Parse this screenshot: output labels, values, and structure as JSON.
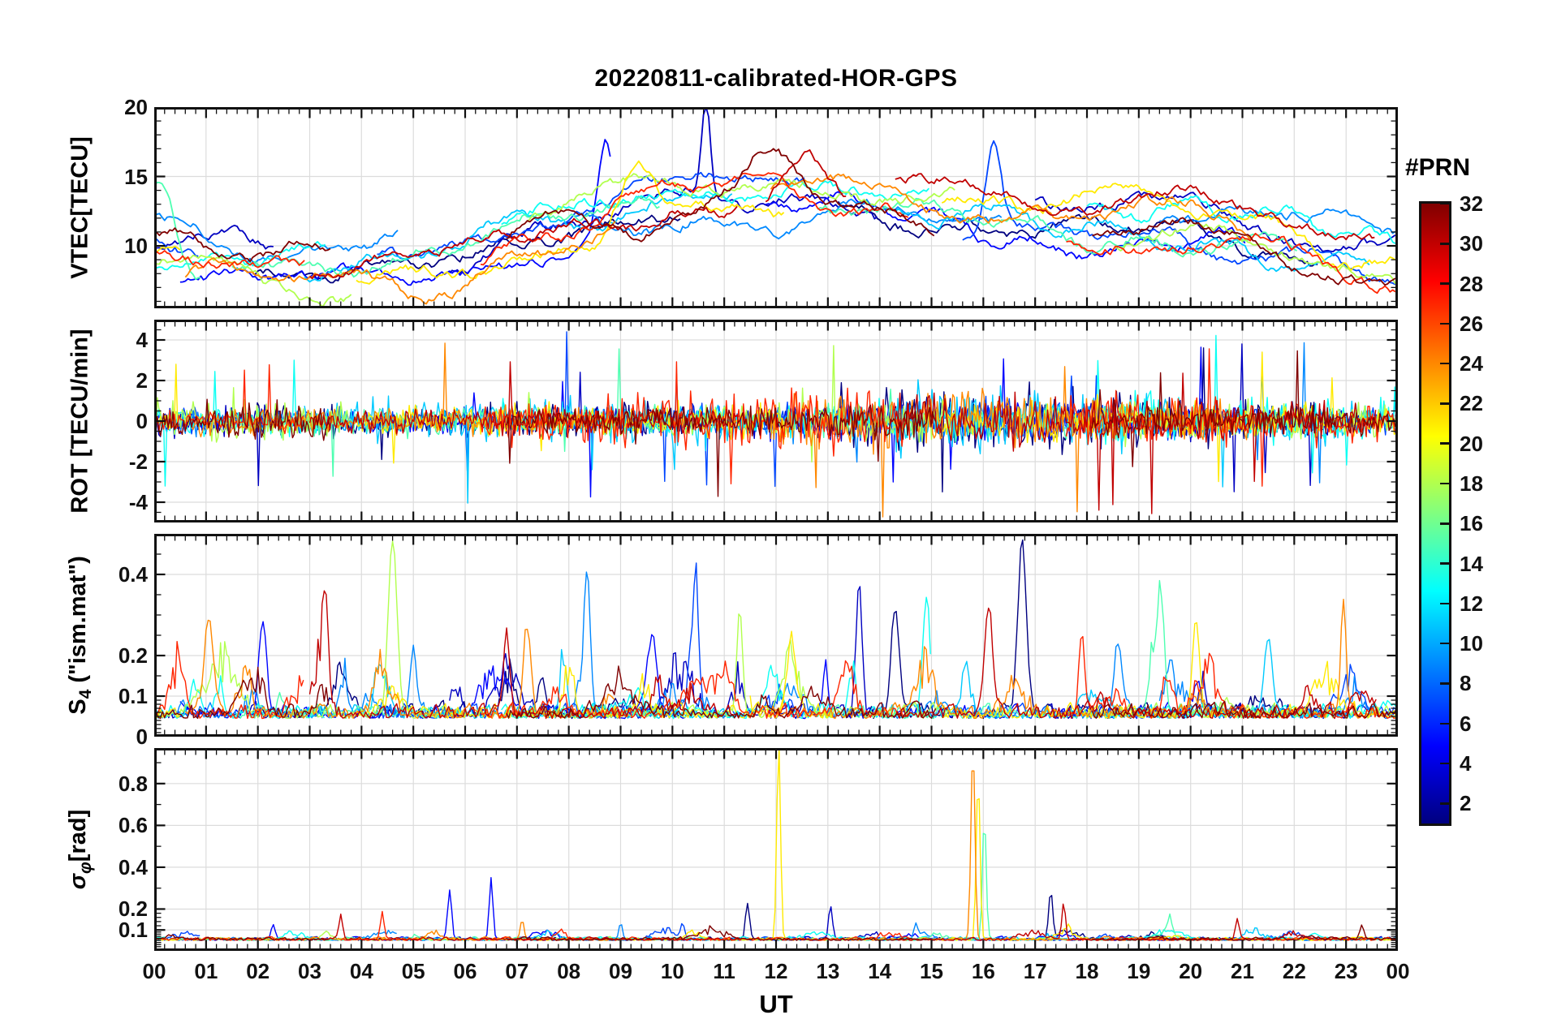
{
  "title": "20220811-calibrated-HOR-GPS",
  "xlabel": "UT",
  "x_ticks": [
    "00",
    "01",
    "02",
    "03",
    "04",
    "05",
    "06",
    "07",
    "08",
    "09",
    "10",
    "11",
    "12",
    "13",
    "14",
    "15",
    "16",
    "17",
    "18",
    "19",
    "20",
    "21",
    "22",
    "23",
    "00"
  ],
  "series_prns": [
    1,
    3,
    5,
    7,
    9,
    11,
    13,
    15,
    18,
    21,
    24,
    27,
    30,
    32
  ],
  "colorbar": {
    "title": "#PRN",
    "min": 1,
    "max": 32,
    "ticks": [
      2,
      4,
      6,
      8,
      10,
      12,
      14,
      16,
      18,
      20,
      22,
      24,
      26,
      28,
      30,
      32
    ],
    "stops": [
      "#000080",
      "#0000ff",
      "#0080ff",
      "#00ffff",
      "#80ff80",
      "#ffff00",
      "#ff8000",
      "#ff0000",
      "#800000"
    ]
  },
  "chart_data": [
    {
      "id": "vtec",
      "type": "line",
      "ylabel": "VTEC[TECU]",
      "xlim": [
        0,
        24
      ],
      "ylim": [
        5.5,
        20
      ],
      "yticks": [
        {
          "v": 10,
          "label": "10"
        },
        {
          "v": 15,
          "label": "15"
        },
        {
          "v": 20,
          "label": "20"
        }
      ],
      "yminor": [
        6,
        7,
        8,
        9,
        11,
        12,
        13,
        14,
        16,
        17,
        18,
        19
      ],
      "baseline": {
        "t": [
          0,
          1,
          2,
          3,
          4,
          5,
          6,
          7,
          8,
          9,
          10,
          11,
          12,
          13,
          14,
          15,
          16,
          17,
          18,
          19,
          20,
          21,
          22,
          23,
          24
        ],
        "v": [
          9.6,
          9.2,
          8.9,
          8.7,
          8.6,
          8.9,
          9.6,
          10.8,
          11.8,
          12.6,
          13.2,
          13.6,
          13.8,
          13.7,
          13.2,
          12.7,
          12.3,
          12.0,
          11.8,
          11.8,
          11.6,
          11.0,
          10.2,
          9.3,
          8.8
        ]
      },
      "spread": 3.2,
      "events": [
        {
          "t": 10.65,
          "v": 19.8,
          "prn": 3,
          "w": 0.12
        },
        {
          "t": 8.7,
          "v": 17.5,
          "prn": 5,
          "w": 0.18
        },
        {
          "t": 16.2,
          "v": 17.3,
          "prn": 7,
          "w": 0.2
        },
        {
          "t": 9.3,
          "v": 16.6,
          "prn": 21,
          "w": 0.5
        },
        {
          "t": 0.15,
          "v": 15.4,
          "prn": 15,
          "w": 0.35
        },
        {
          "t": 11.9,
          "v": 16.8,
          "prn": 32,
          "w": 0.6
        },
        {
          "t": 12.6,
          "v": 16.4,
          "prn": 30,
          "w": 0.5
        }
      ]
    },
    {
      "id": "rot",
      "type": "line",
      "ylabel": "ROT [TECU/min]",
      "xlim": [
        0,
        24
      ],
      "ylim": [
        -5,
        5
      ],
      "yticks": [
        {
          "v": -4,
          "label": "-4"
        },
        {
          "v": -2,
          "label": "-2"
        },
        {
          "v": 0,
          "label": "0"
        },
        {
          "v": 2,
          "label": "2"
        },
        {
          "v": 4,
          "label": "4"
        }
      ],
      "yminor": [
        -4.5,
        -3.5,
        -3,
        -2.5,
        -1.5,
        -1,
        -0.5,
        0.5,
        1,
        1.5,
        2.5,
        3,
        3.5,
        4.5
      ],
      "noise_std": 0.35,
      "spike_amp_max": 4.5,
      "events": []
    },
    {
      "id": "s4",
      "type": "line",
      "ylabel_main": "S",
      "ylabel_sub": "4",
      "ylabel_rest": " (\"ism.mat\")",
      "xlim": [
        0,
        24
      ],
      "ylim": [
        0,
        0.5
      ],
      "yticks": [
        {
          "v": 0,
          "label": "0"
        },
        {
          "v": 0.1,
          "label": "0.1"
        },
        {
          "v": 0.2,
          "label": "0.2"
        },
        {
          "v": 0.4,
          "label": "0.4"
        }
      ],
      "yminor": [
        0.01,
        0.02,
        0.03,
        0.04,
        0.05,
        0.06,
        0.07,
        0.08,
        0.09,
        0.15,
        0.25,
        0.3,
        0.35,
        0.45
      ],
      "baseline": 0.05,
      "events": [
        {
          "t": 4.6,
          "v": 0.47,
          "prn": 18
        },
        {
          "t": 8.35,
          "v": 0.4,
          "prn": 9
        },
        {
          "t": 16.75,
          "v": 0.47,
          "prn": 1
        },
        {
          "t": 13.6,
          "v": 0.36,
          "prn": 3
        },
        {
          "t": 14.9,
          "v": 0.33,
          "prn": 13
        },
        {
          "t": 22.95,
          "v": 0.33,
          "prn": 24
        },
        {
          "t": 2.1,
          "v": 0.28,
          "prn": 5
        },
        {
          "t": 1.05,
          "v": 0.28,
          "prn": 24
        },
        {
          "t": 10.45,
          "v": 0.3,
          "prn": 7
        },
        {
          "t": 19.4,
          "v": 0.28,
          "prn": 15
        },
        {
          "t": 16.1,
          "v": 0.3,
          "prn": 30
        },
        {
          "t": 6.8,
          "v": 0.25,
          "prn": 30
        },
        {
          "t": 11.3,
          "v": 0.3,
          "prn": 18
        },
        {
          "t": 14.3,
          "v": 0.3,
          "prn": 1
        },
        {
          "t": 20.1,
          "v": 0.27,
          "prn": 21
        },
        {
          "t": 5.0,
          "v": 0.22,
          "prn": 9
        },
        {
          "t": 7.2,
          "v": 0.26,
          "prn": 24
        },
        {
          "t": 9.6,
          "v": 0.24,
          "prn": 5
        },
        {
          "t": 12.3,
          "v": 0.22,
          "prn": 21
        },
        {
          "t": 17.9,
          "v": 0.25,
          "prn": 27
        },
        {
          "t": 21.5,
          "v": 0.24,
          "prn": 11
        },
        {
          "t": 3.3,
          "v": 0.24,
          "prn": 30
        },
        {
          "t": 18.6,
          "v": 0.22,
          "prn": 9
        }
      ]
    },
    {
      "id": "sigma-phi",
      "type": "line",
      "ylabel_main": "σ",
      "ylabel_sub": "φ",
      "ylabel_rest": "[rad]",
      "xlim": [
        0,
        24
      ],
      "ylim": [
        0,
        0.97
      ],
      "yticks": [
        {
          "v": 0.1,
          "label": "0.1"
        },
        {
          "v": 0.2,
          "label": "0.2"
        },
        {
          "v": 0.4,
          "label": "0.4"
        },
        {
          "v": 0.6,
          "label": "0.6"
        },
        {
          "v": 0.8,
          "label": "0.8"
        }
      ],
      "yminor": [
        0.02,
        0.03,
        0.04,
        0.05,
        0.06,
        0.07,
        0.08,
        0.09,
        0.12,
        0.14,
        0.16,
        0.18,
        0.3,
        0.5,
        0.7,
        0.9
      ],
      "baseline": 0.05,
      "events": [
        {
          "t": 12.05,
          "v": 0.97,
          "prn": 21
        },
        {
          "t": 15.8,
          "v": 0.95,
          "prn": 24
        },
        {
          "t": 15.9,
          "v": 0.8,
          "prn": 21
        },
        {
          "t": 16.02,
          "v": 0.62,
          "prn": 15
        },
        {
          "t": 5.7,
          "v": 0.28,
          "prn": 5
        },
        {
          "t": 6.5,
          "v": 0.33,
          "prn": 5
        },
        {
          "t": 11.45,
          "v": 0.22,
          "prn": 1
        },
        {
          "t": 13.05,
          "v": 0.2,
          "prn": 3
        },
        {
          "t": 17.3,
          "v": 0.27,
          "prn": 1
        },
        {
          "t": 17.55,
          "v": 0.22,
          "prn": 30
        },
        {
          "t": 3.6,
          "v": 0.17,
          "prn": 30
        },
        {
          "t": 4.4,
          "v": 0.18,
          "prn": 27
        },
        {
          "t": 9.0,
          "v": 0.13,
          "prn": 9
        },
        {
          "t": 20.9,
          "v": 0.14,
          "prn": 30
        },
        {
          "t": 23.3,
          "v": 0.12,
          "prn": 32
        },
        {
          "t": 14.7,
          "v": 0.12,
          "prn": 9
        },
        {
          "t": 2.3,
          "v": 0.12,
          "prn": 5
        },
        {
          "t": 7.1,
          "v": 0.14,
          "prn": 24
        },
        {
          "t": 10.2,
          "v": 0.12,
          "prn": 7
        },
        {
          "t": 19.6,
          "v": 0.12,
          "prn": 15
        }
      ]
    }
  ]
}
